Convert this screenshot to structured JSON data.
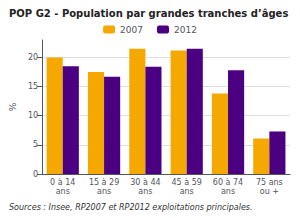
{
  "chart_data": {
    "type": "bar",
    "title": "POP G2 - Population par grandes tranches d’âges",
    "categories": [
      "0 à 14\nans",
      "15 à 29\nans",
      "30 à 44\nans",
      "45 à 59\nans",
      "60 à 74\nans",
      "75 ans\nou +"
    ],
    "series": [
      {
        "name": "2007",
        "color": "#F5A800",
        "values": [
          20.0,
          17.5,
          21.5,
          21.2,
          13.8,
          6.1
        ]
      },
      {
        "name": "2012",
        "color": "#4B0082",
        "values": [
          18.5,
          16.7,
          18.4,
          21.5,
          17.8,
          7.3
        ]
      }
    ],
    "ylabel": "%",
    "ylim": [
      0,
      23
    ],
    "yticks": [
      0,
      5,
      10,
      15,
      20
    ],
    "grid": true,
    "annotations": [
      "Sources : Insee, RP2007 et RP2012 exploitations principales."
    ]
  }
}
